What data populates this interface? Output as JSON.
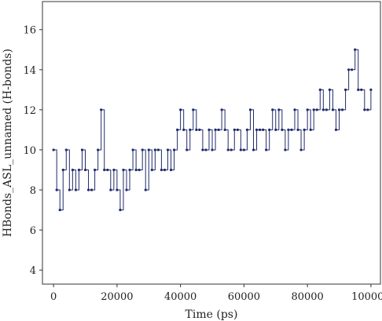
{
  "chart_data": {
    "type": "line",
    "title": "",
    "xlabel": "Time (ps)",
    "ylabel": "HBonds_ASL_unnamed (H-bonds)",
    "xlim": [
      -3500,
      103000
    ],
    "ylim": [
      3.3,
      17.4
    ],
    "x_ticks": [
      0,
      20000,
      40000,
      60000,
      80000,
      100000
    ],
    "y_ticks": [
      4,
      6,
      8,
      10,
      12,
      14,
      16
    ],
    "grid": false,
    "legend": "none",
    "line_color": "#1f2a6b",
    "series": [
      {
        "x": [
          0,
          1000,
          2000,
          3000,
          4000,
          5000,
          6000,
          7000,
          8000,
          9000,
          10000,
          11000,
          12000,
          13000,
          14000,
          15000,
          16000,
          17000,
          18000,
          19000,
          20000,
          21000,
          22000,
          23000,
          24000,
          25000,
          26000,
          27000,
          28000,
          29000,
          30000,
          31000,
          32000,
          33000,
          34000,
          35000,
          36000,
          37000,
          38000,
          39000,
          40000,
          41000,
          42000,
          43000,
          44000,
          45000,
          46000,
          47000,
          48000,
          49000,
          50000,
          51000,
          52000,
          53000,
          54000,
          55000,
          56000,
          57000,
          58000,
          59000,
          60000,
          61000,
          62000,
          63000,
          64000,
          65000,
          66000,
          67000,
          68000,
          69000,
          70000,
          71000,
          72000,
          73000,
          74000,
          75000,
          76000,
          77000,
          78000,
          79000,
          80000,
          81000,
          82000,
          83000,
          84000,
          85000,
          86000,
          87000,
          88000,
          89000,
          90000,
          91000,
          92000,
          93000,
          94000,
          95000,
          96000,
          97000,
          98000,
          99000,
          100000
        ],
        "values": [
          10,
          8,
          7,
          9,
          10,
          8,
          9,
          8,
          9,
          10,
          9,
          8,
          8,
          9,
          10,
          12,
          9,
          9,
          8,
          9,
          8,
          7,
          9,
          8,
          9,
          10,
          9,
          9,
          10,
          8,
          10,
          9,
          10,
          10,
          9,
          9,
          10,
          9,
          10,
          11,
          12,
          11,
          10,
          11,
          12,
          11,
          11,
          10,
          10,
          11,
          10,
          11,
          11,
          12,
          11,
          10,
          10,
          11,
          11,
          10,
          10,
          11,
          12,
          10,
          11,
          11,
          11,
          10,
          11,
          12,
          11,
          12,
          11,
          10,
          11,
          11,
          12,
          11,
          10,
          11,
          12,
          11,
          12,
          12,
          13,
          12,
          12,
          13,
          12,
          11,
          12,
          12,
          13,
          14,
          14,
          15,
          13,
          13,
          12,
          12,
          13
        ]
      }
    ]
  }
}
